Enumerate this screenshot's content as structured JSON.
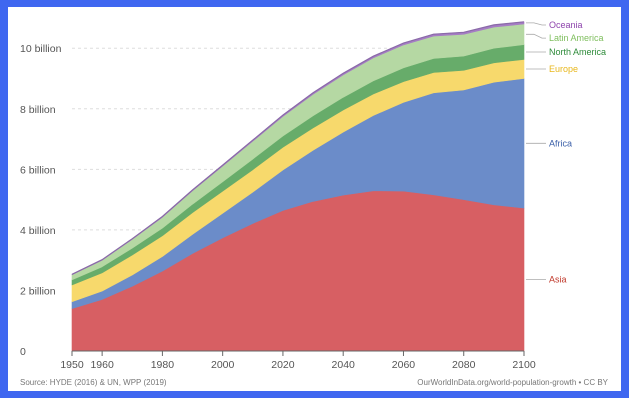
{
  "chart_data": {
    "type": "area",
    "stacked": true,
    "x": [
      1950,
      1960,
      1970,
      1980,
      1990,
      2000,
      2010,
      2020,
      2030,
      2040,
      2050,
      2060,
      2070,
      2080,
      2090,
      2100
    ],
    "y_tick_labels": [
      "0",
      "2 billion",
      "4 billion",
      "6 billion",
      "8 billion",
      "10 billion"
    ],
    "y_tick_values": [
      0,
      2,
      4,
      6,
      8,
      10
    ],
    "x_tick_labels": [
      "1950",
      "1960",
      "1980",
      "2000",
      "2020",
      "2040",
      "2060",
      "2080",
      "2100"
    ],
    "x_tick_values": [
      1950,
      1960,
      1980,
      2000,
      2020,
      2040,
      2060,
      2080,
      2100
    ],
    "xlim": [
      1950,
      2100
    ],
    "ylim": [
      0,
      10.9
    ],
    "grid": true,
    "legend_placement": "right",
    "series": [
      {
        "name": "Asia",
        "color": "#d75f63",
        "label_color": "#c0392b",
        "values": [
          1.4,
          1.7,
          2.14,
          2.64,
          3.22,
          3.74,
          4.21,
          4.64,
          4.94,
          5.15,
          5.29,
          5.28,
          5.16,
          5.0,
          4.83,
          4.72
        ]
      },
      {
        "name": "Africa",
        "color": "#6b8cc9",
        "label_color": "#3a5fa8",
        "values": [
          0.23,
          0.28,
          0.37,
          0.48,
          0.63,
          0.81,
          1.04,
          1.34,
          1.69,
          2.08,
          2.49,
          2.93,
          3.37,
          3.62,
          4.05,
          4.28
        ]
      },
      {
        "name": "Europe",
        "color": "#f7d96c",
        "label_color": "#e8b71b",
        "values": [
          0.55,
          0.6,
          0.66,
          0.69,
          0.72,
          0.73,
          0.74,
          0.75,
          0.74,
          0.73,
          0.71,
          0.69,
          0.67,
          0.65,
          0.64,
          0.63
        ]
      },
      {
        "name": "North America",
        "color": "#67ac6a",
        "label_color": "#2e8b3a",
        "values": [
          0.17,
          0.2,
          0.23,
          0.25,
          0.28,
          0.31,
          0.35,
          0.37,
          0.4,
          0.42,
          0.43,
          0.45,
          0.46,
          0.47,
          0.48,
          0.49
        ]
      },
      {
        "name": "Latin America",
        "color": "#b5d8a3",
        "label_color": "#7fbf5e",
        "values": [
          0.17,
          0.22,
          0.29,
          0.36,
          0.44,
          0.52,
          0.59,
          0.65,
          0.71,
          0.74,
          0.76,
          0.76,
          0.74,
          0.72,
          0.7,
          0.68
        ]
      },
      {
        "name": "Oceania",
        "color": "#a57cc4",
        "label_color": "#8e44ad",
        "values": [
          0.013,
          0.016,
          0.02,
          0.023,
          0.027,
          0.031,
          0.037,
          0.043,
          0.048,
          0.053,
          0.057,
          0.061,
          0.065,
          0.068,
          0.071,
          0.075
        ]
      }
    ],
    "source_left": "Source: HYDE (2016) & UN, WPP (2019)",
    "source_right": "OurWorldInData.org/world-population-growth • CC BY"
  }
}
